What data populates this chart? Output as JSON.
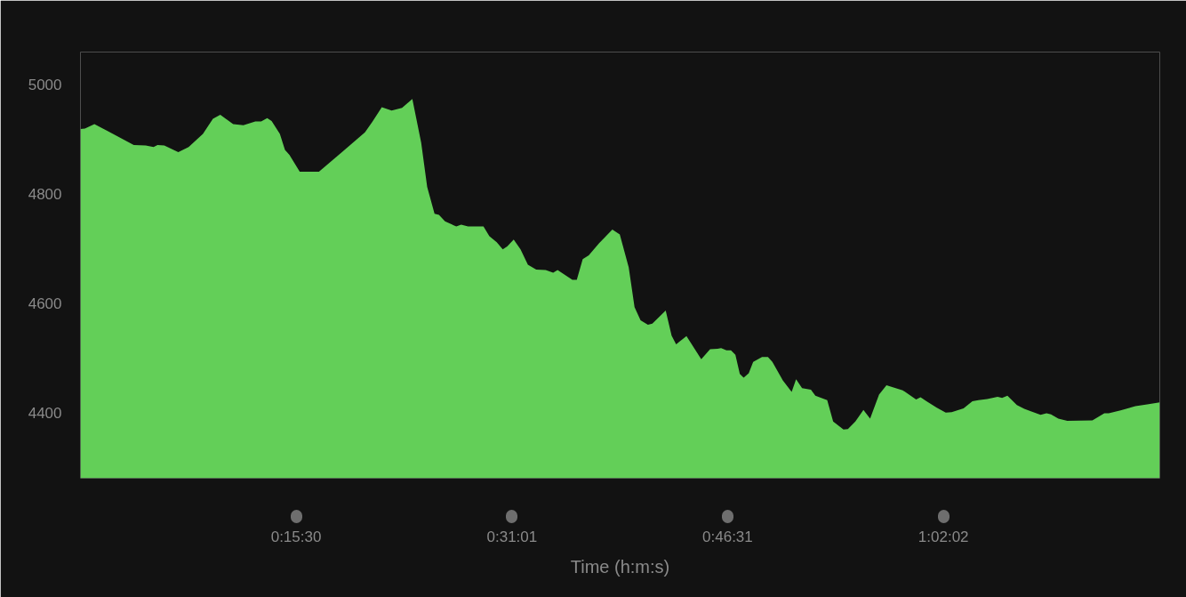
{
  "chart_data": {
    "type": "area",
    "xlabel": "Time (h:m:s)",
    "x": [
      0,
      0.0053,
      0.0167,
      0.032,
      0.0639,
      0.0781,
      0.0876,
      0.0923,
      0.1004,
      0.1172,
      0.1296,
      0.1467,
      0.1587,
      0.1675,
      0.1829,
      0.1952,
      0.2095,
      0.2165,
      0.2237,
      0.229,
      0.2389,
      0.245,
      0.2503,
      0.2627,
      0.2857,
      0.3142,
      0.3408,
      0.3496,
      0.361,
      0.3728,
      0.3852,
      0.3976,
      0.4082,
      0.4154,
      0.4242,
      0.4295,
      0.4367,
      0.4502,
      0.4561,
      0.4643,
      0.4828,
      0.4899,
      0.4987,
      0.5059,
      0.5112,
      0.519,
      0.5272,
      0.536,
      0.546,
      0.5573,
      0.5663,
      0.5716,
      0.5893,
      0.5946,
      0.6017,
      0.6089,
      0.6212,
      0.6372,
      0.6461,
      0.6568,
      0.6638,
      0.671,
      0.6798,
      0.6851,
      0.7011,
      0.7082,
      0.7136,
      0.726,
      0.7437,
      0.7543,
      0.7633,
      0.7675,
      0.7739,
      0.7793,
      0.7846,
      0.7899,
      0.7945,
      0.8006,
      0.8059,
      0.8165,
      0.8236,
      0.8289,
      0.8414,
      0.852,
      0.8573,
      0.8645,
      0.8751,
      0.8804,
      0.8946,
      0.9017,
      0.9141,
      0.9194,
      0.9283,
      0.938,
      0.946,
      0.9567,
      0.9656,
      0.9851,
      1.0011,
      1.0064,
      1.0136,
      1.0259,
      1.0366,
      1.0437,
      1.0579,
      1.0685,
      1.0757,
      1.0863,
      1.0987,
      1.1041,
      1.1105,
      1.1218,
      1.1307,
      1.1378,
      1.1502,
      1.1573,
      1.1627,
      1.1715,
      1.1822,
      1.2123,
      1.2266,
      1.2318,
      1.246,
      1.2638,
      1.278,
      1.2929
    ],
    "series": [
      {
        "color": "#63cf58",
        "values": [
          4919,
          4920,
          4928,
          4916,
          4890,
          4889,
          4886,
          4890,
          4889,
          4877,
          4886,
          4910,
          4938,
          4945,
          4928,
          4926,
          4933,
          4933,
          4939,
          4934,
          4910,
          4881,
          4872,
          4841,
          4841,
          4878,
          4913,
          4932,
          4959,
          4953,
          4958,
          4974,
          4894,
          4813,
          4764,
          4762,
          4750,
          4741,
          4744,
          4741,
          4741,
          4723,
          4712,
          4699,
          4704,
          4717,
          4699,
          4671,
          4662,
          4661,
          4656,
          4661,
          4643,
          4643,
          4681,
          4688,
          4710,
          4735,
          4726,
          4666,
          4593,
          4569,
          4561,
          4563,
          4587,
          4541,
          4525,
          4540,
          4498,
          4516,
          4517,
          4518,
          4514,
          4514,
          4506,
          4471,
          4464,
          4472,
          4493,
          4502,
          4502,
          4493,
          4459,
          4438,
          4461,
          4445,
          4442,
          4431,
          4423,
          4384,
          4369,
          4370,
          4384,
          4405,
          4389,
          4433,
          4450,
          4441,
          4424,
          4428,
          4421,
          4409,
          4400,
          4401,
          4408,
          4421,
          4423,
          4425,
          4429,
          4427,
          4431,
          4414,
          4407,
          4403,
          4396,
          4399,
          4397,
          4389,
          4385,
          4386,
          4399,
          4399,
          4404,
          4412,
          4415,
          4419
        ]
      }
    ],
    "xlim": [
      0,
      1.293
    ],
    "ylim": [
      4280,
      5060
    ],
    "xticks": [
      {
        "value": 0.258333,
        "label": "0:15:30"
      },
      {
        "value": 0.516944,
        "label": "0:31:01"
      },
      {
        "value": 0.775278,
        "label": "0:46:31"
      },
      {
        "value": 1.033889,
        "label": "1:02:02"
      }
    ],
    "yticks": [
      4400,
      4600,
      4800,
      5000
    ],
    "grid": false
  }
}
